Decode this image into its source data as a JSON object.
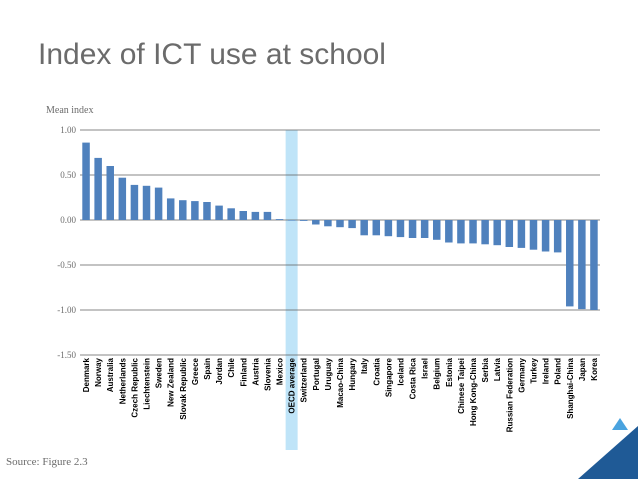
{
  "slide": {
    "title": "Index of ICT use at school",
    "source": "Source: Figure 2.3"
  },
  "colors": {
    "bar": "#4f81bd",
    "highlight": "#bfe4f8",
    "grid": "#5f5f5f",
    "text": "#6b6b6b",
    "accent_dark": "#1f5a96",
    "accent_light": "#4aa3df"
  },
  "chart_data": {
    "type": "bar",
    "ylabel": "Mean index",
    "ylim": [
      -1.5,
      1.0
    ],
    "yticks": [
      "1.00",
      "0.50",
      "0.00",
      "-0.50",
      "-1.00",
      "-1.50"
    ],
    "ytick_values": [
      1.0,
      0.5,
      0.0,
      -0.5,
      -1.0,
      -1.5
    ],
    "grid": true,
    "highlight_category": "OECD average",
    "categories": [
      "Denmark",
      "Norway",
      "Australia",
      "Netherlands",
      "Czech Republic",
      "Liechtenstein",
      "Sweden",
      "New Zealand",
      "Slovak Republic",
      "Greece",
      "Spain",
      "Jordan",
      "Chile",
      "Finland",
      "Austria",
      "Slovenia",
      "Mexico",
      "OECD average",
      "Switzerland",
      "Portugal",
      "Uruguay",
      "Macao-China",
      "Hungary",
      "Italy",
      "Croatia",
      "Singapore",
      "Iceland",
      "Costa Rica",
      "Israel",
      "Belgium",
      "Estonia",
      "Chinese Taipei",
      "Hong Kong-China",
      "Serbia",
      "Latvia",
      "Russian Federation",
      "Germany",
      "Turkey",
      "Ireland",
      "Poland",
      "Shanghai-China",
      "Japan",
      "Korea"
    ],
    "values": [
      0.86,
      0.69,
      0.6,
      0.47,
      0.39,
      0.38,
      0.36,
      0.24,
      0.22,
      0.21,
      0.2,
      0.16,
      0.13,
      0.1,
      0.09,
      0.09,
      0.01,
      0.0,
      -0.01,
      -0.05,
      -0.07,
      -0.08,
      -0.09,
      -0.17,
      -0.17,
      -0.18,
      -0.19,
      -0.2,
      -0.2,
      -0.22,
      -0.25,
      -0.26,
      -0.26,
      -0.27,
      -0.28,
      -0.3,
      -0.31,
      -0.33,
      -0.35,
      -0.36,
      -0.96,
      -0.99,
      -1.0
    ]
  }
}
